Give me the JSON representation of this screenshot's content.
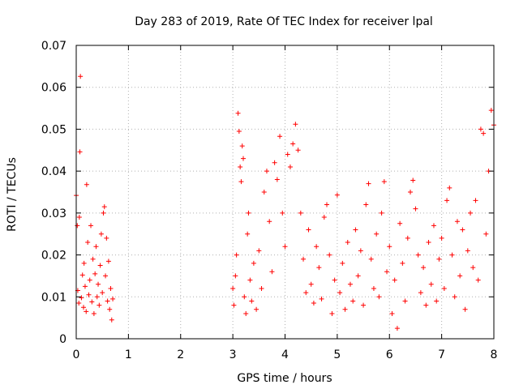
{
  "chart_data": {
    "type": "scatter",
    "title": "Day 283 of 2019, Rate Of TEC Index for receiver lpal",
    "xlabel": "GPS time / hours",
    "ylabel": "ROTI / TECUs",
    "xlim": [
      0,
      8
    ],
    "ylim": [
      0,
      0.07
    ],
    "x_ticks": [
      0,
      1,
      2,
      3,
      4,
      5,
      6,
      7,
      8
    ],
    "y_ticks": [
      0,
      0.01,
      0.02,
      0.03,
      0.04,
      0.05,
      0.06,
      0.07
    ],
    "x_tick_labels": [
      "0",
      "1",
      "2",
      "3",
      "4",
      "5",
      "6",
      "7",
      "8"
    ],
    "y_tick_labels": [
      "0",
      "0.01",
      "0.02",
      "0.03",
      "0.04",
      "0.05",
      "0.06",
      "0.07"
    ],
    "grid": true,
    "marker": "+",
    "marker_color": "#ff0000",
    "series": [
      {
        "name": "ROTI",
        "points": [
          [
            0.0,
            0.0342
          ],
          [
            0.02,
            0.027
          ],
          [
            0.03,
            0.0115
          ],
          [
            0.05,
            0.0085
          ],
          [
            0.06,
            0.029
          ],
          [
            0.07,
            0.0446
          ],
          [
            0.08,
            0.0626
          ],
          [
            0.1,
            0.0098
          ],
          [
            0.12,
            0.0152
          ],
          [
            0.14,
            0.0075
          ],
          [
            0.15,
            0.018
          ],
          [
            0.17,
            0.0125
          ],
          [
            0.19,
            0.0065
          ],
          [
            0.2,
            0.0368
          ],
          [
            0.22,
            0.023
          ],
          [
            0.24,
            0.0105
          ],
          [
            0.26,
            0.014
          ],
          [
            0.28,
            0.027
          ],
          [
            0.3,
            0.0088
          ],
          [
            0.32,
            0.019
          ],
          [
            0.34,
            0.006
          ],
          [
            0.36,
            0.0155
          ],
          [
            0.38,
            0.022
          ],
          [
            0.4,
            0.01
          ],
          [
            0.42,
            0.013
          ],
          [
            0.44,
            0.008
          ],
          [
            0.46,
            0.0175
          ],
          [
            0.48,
            0.025
          ],
          [
            0.5,
            0.011
          ],
          [
            0.52,
            0.03
          ],
          [
            0.54,
            0.0315
          ],
          [
            0.56,
            0.015
          ],
          [
            0.58,
            0.024
          ],
          [
            0.6,
            0.009
          ],
          [
            0.62,
            0.0185
          ],
          [
            0.64,
            0.007
          ],
          [
            0.66,
            0.012
          ],
          [
            0.68,
            0.0045
          ],
          [
            0.7,
            0.0095
          ],
          [
            3.0,
            0.012
          ],
          [
            3.02,
            0.008
          ],
          [
            3.05,
            0.015
          ],
          [
            3.07,
            0.02
          ],
          [
            3.1,
            0.0538
          ],
          [
            3.12,
            0.0495
          ],
          [
            3.14,
            0.041
          ],
          [
            3.16,
            0.0375
          ],
          [
            3.18,
            0.046
          ],
          [
            3.2,
            0.043
          ],
          [
            3.22,
            0.01
          ],
          [
            3.25,
            0.006
          ],
          [
            3.28,
            0.025
          ],
          [
            3.3,
            0.03
          ],
          [
            3.33,
            0.014
          ],
          [
            3.36,
            0.009
          ],
          [
            3.4,
            0.018
          ],
          [
            3.45,
            0.007
          ],
          [
            3.5,
            0.021
          ],
          [
            3.55,
            0.012
          ],
          [
            3.6,
            0.035
          ],
          [
            3.65,
            0.04
          ],
          [
            3.7,
            0.028
          ],
          [
            3.75,
            0.016
          ],
          [
            3.8,
            0.042
          ],
          [
            3.85,
            0.038
          ],
          [
            3.9,
            0.0483
          ],
          [
            3.95,
            0.03
          ],
          [
            4.0,
            0.022
          ],
          [
            4.05,
            0.044
          ],
          [
            4.1,
            0.041
          ],
          [
            4.15,
            0.0465
          ],
          [
            4.2,
            0.0512
          ],
          [
            4.25,
            0.045
          ],
          [
            4.3,
            0.03
          ],
          [
            4.35,
            0.019
          ],
          [
            4.4,
            0.011
          ],
          [
            4.45,
            0.026
          ],
          [
            4.5,
            0.013
          ],
          [
            4.55,
            0.0085
          ],
          [
            4.6,
            0.022
          ],
          [
            4.65,
            0.017
          ],
          [
            4.7,
            0.0095
          ],
          [
            4.75,
            0.029
          ],
          [
            4.8,
            0.032
          ],
          [
            4.85,
            0.02
          ],
          [
            4.9,
            0.006
          ],
          [
            4.95,
            0.014
          ],
          [
            5.0,
            0.0343
          ],
          [
            5.05,
            0.011
          ],
          [
            5.1,
            0.018
          ],
          [
            5.15,
            0.007
          ],
          [
            5.2,
            0.023
          ],
          [
            5.25,
            0.013
          ],
          [
            5.3,
            0.009
          ],
          [
            5.35,
            0.026
          ],
          [
            5.4,
            0.015
          ],
          [
            5.45,
            0.021
          ],
          [
            5.5,
            0.008
          ],
          [
            5.55,
            0.032
          ],
          [
            5.6,
            0.037
          ],
          [
            5.65,
            0.019
          ],
          [
            5.7,
            0.012
          ],
          [
            5.75,
            0.025
          ],
          [
            5.8,
            0.01
          ],
          [
            5.85,
            0.03
          ],
          [
            5.9,
            0.0375
          ],
          [
            5.95,
            0.016
          ],
          [
            6.0,
            0.022
          ],
          [
            6.05,
            0.006
          ],
          [
            6.1,
            0.014
          ],
          [
            6.15,
            0.0025
          ],
          [
            6.2,
            0.0275
          ],
          [
            6.25,
            0.018
          ],
          [
            6.3,
            0.009
          ],
          [
            6.35,
            0.024
          ],
          [
            6.4,
            0.035
          ],
          [
            6.45,
            0.0378
          ],
          [
            6.5,
            0.031
          ],
          [
            6.55,
            0.02
          ],
          [
            6.6,
            0.011
          ],
          [
            6.65,
            0.017
          ],
          [
            6.7,
            0.008
          ],
          [
            6.75,
            0.023
          ],
          [
            6.8,
            0.013
          ],
          [
            6.85,
            0.027
          ],
          [
            6.9,
            0.009
          ],
          [
            6.95,
            0.019
          ],
          [
            7.0,
            0.024
          ],
          [
            7.05,
            0.012
          ],
          [
            7.1,
            0.033
          ],
          [
            7.15,
            0.036
          ],
          [
            7.2,
            0.02
          ],
          [
            7.25,
            0.01
          ],
          [
            7.3,
            0.028
          ],
          [
            7.35,
            0.015
          ],
          [
            7.4,
            0.026
          ],
          [
            7.45,
            0.007
          ],
          [
            7.5,
            0.021
          ],
          [
            7.55,
            0.03
          ],
          [
            7.6,
            0.017
          ],
          [
            7.65,
            0.033
          ],
          [
            7.7,
            0.014
          ],
          [
            7.75,
            0.05
          ],
          [
            7.8,
            0.049
          ],
          [
            7.85,
            0.025
          ],
          [
            7.9,
            0.04
          ],
          [
            7.95,
            0.0545
          ],
          [
            8.0,
            0.051
          ]
        ]
      }
    ]
  }
}
